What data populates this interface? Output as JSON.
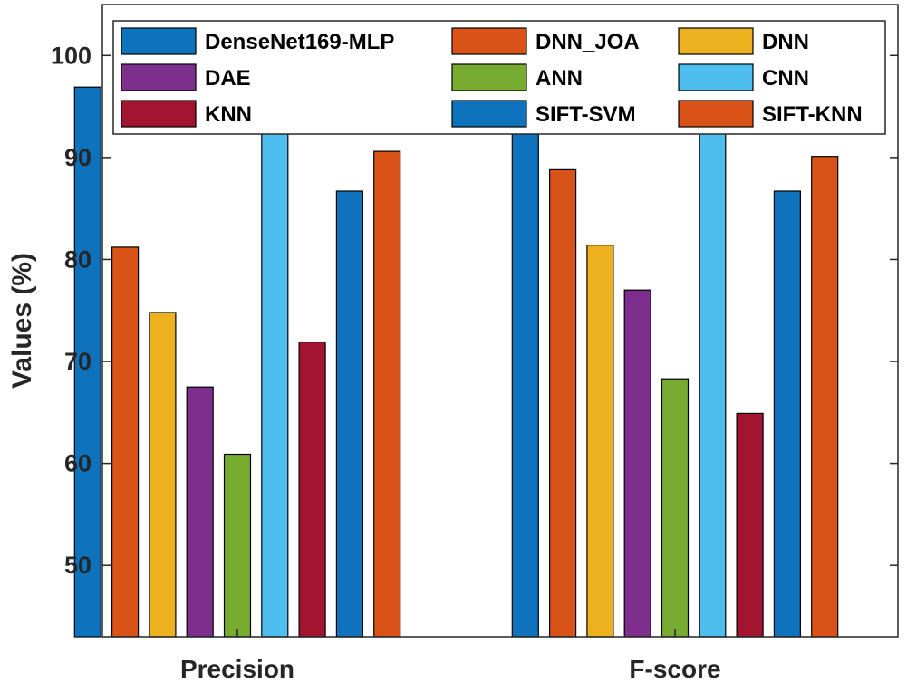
{
  "chart_data": {
    "type": "bar",
    "title": "",
    "xlabel": "",
    "ylabel": "Values (%)",
    "ylim": [
      43,
      105
    ],
    "yticks": [
      50,
      60,
      70,
      80,
      90,
      100
    ],
    "categories": [
      "Precision",
      "F-score"
    ],
    "legend_position": "top",
    "series": [
      {
        "name": "DenseNet169-MLP",
        "color": "#0E72BD",
        "values": [
          96.9,
          96.5
        ]
      },
      {
        "name": "DNN_JOA",
        "color": "#D95319",
        "values": [
          81.2,
          88.8
        ]
      },
      {
        "name": "DNN",
        "color": "#EDB120",
        "values": [
          74.8,
          81.4
        ]
      },
      {
        "name": "DAE",
        "color": "#7E2F8E",
        "values": [
          67.5,
          77.0
        ]
      },
      {
        "name": "ANN",
        "color": "#77AC30",
        "values": [
          60.9,
          68.3
        ]
      },
      {
        "name": "CNN",
        "color": "#4DBEEE",
        "values": [
          94.0,
          94.0
        ]
      },
      {
        "name": "KNN",
        "color": "#A2142F",
        "values": [
          71.9,
          64.9
        ]
      },
      {
        "name": "SIFT-SVM",
        "color": "#0E72BD",
        "values": [
          86.7,
          86.7
        ]
      },
      {
        "name": "SIFT-KNN",
        "color": "#D95319",
        "values": [
          90.6,
          90.1
        ]
      }
    ]
  }
}
